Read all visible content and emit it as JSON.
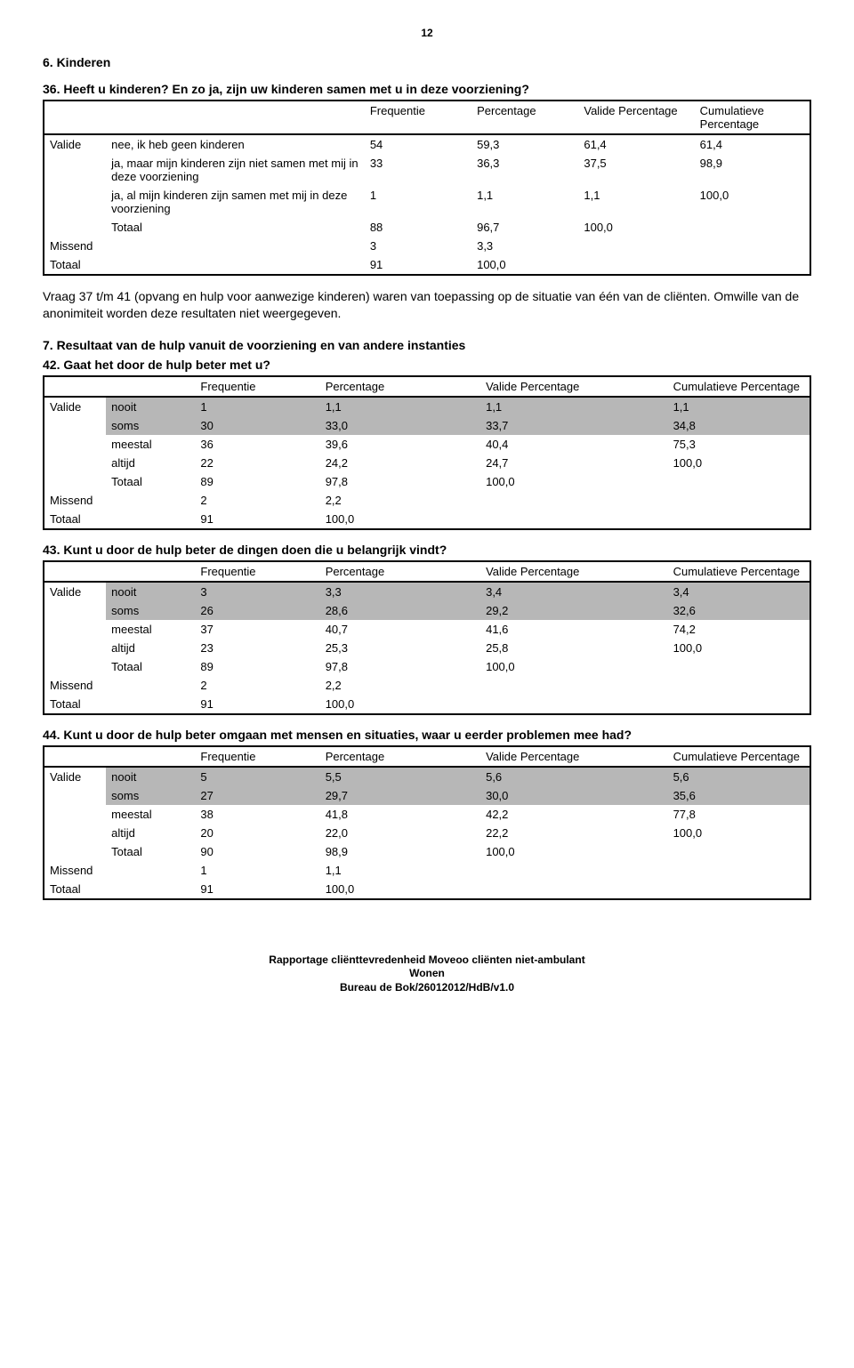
{
  "page_number": "12",
  "heading_section": "6. Kinderen",
  "q36": {
    "title": "36. Heeft u kinderen? En zo ja, zijn uw kinderen samen met u in deze voorziening?",
    "headers": [
      "Frequentie",
      "Percentage",
      "Valide Percentage",
      "Cumulatieve Percentage"
    ],
    "group_label": "Valide",
    "rows": [
      {
        "label": "nee, ik heb geen kinderen",
        "cells": [
          "54",
          "59,3",
          "61,4",
          "61,4"
        ]
      },
      {
        "label": "ja, maar mijn kinderen zijn niet samen met mij in deze voorziening",
        "cells": [
          "33",
          "36,3",
          "37,5",
          "98,9"
        ]
      },
      {
        "label": "ja, al mijn kinderen zijn samen met mij in deze voorziening",
        "cells": [
          "1",
          "1,1",
          "1,1",
          "100,0"
        ]
      },
      {
        "label": "Totaal",
        "cells": [
          "88",
          "96,7",
          "100,0",
          ""
        ]
      }
    ],
    "missend": {
      "label": "Missend",
      "cells": [
        "3",
        "3,3",
        "",
        ""
      ]
    },
    "totaal": {
      "label": "Totaal",
      "cells": [
        "91",
        "100,0",
        "",
        ""
      ]
    }
  },
  "note_paragraph": "Vraag 37 t/m 41 (opvang en hulp voor aanwezige kinderen) waren van toepassing op de situatie van één van de cliënten. Omwille van de anonimiteit worden deze resultaten niet weergegeven.",
  "heading_section2": "7. Resultaat van de hulp vanuit de voorziening en van andere instanties",
  "tableB_headers": [
    "Frequentie",
    "Percentage",
    "Valide Percentage",
    "Cumulatieve Percentage"
  ],
  "q42": {
    "title": "42. Gaat het door de hulp beter met u?",
    "rows": [
      {
        "label": "nooit",
        "shade": true,
        "cells": [
          "1",
          "1,1",
          "1,1",
          "1,1"
        ]
      },
      {
        "label": "soms",
        "shade": true,
        "cells": [
          "30",
          "33,0",
          "33,7",
          "34,8"
        ]
      },
      {
        "label": "meestal",
        "shade": false,
        "cells": [
          "36",
          "39,6",
          "40,4",
          "75,3"
        ]
      },
      {
        "label": "altijd",
        "shade": false,
        "cells": [
          "22",
          "24,2",
          "24,7",
          "100,0"
        ]
      },
      {
        "label": "Totaal",
        "shade": false,
        "cells": [
          "89",
          "97,8",
          "100,0",
          ""
        ]
      }
    ],
    "missend": {
      "label": "Missend",
      "cells": [
        "2",
        "2,2",
        "",
        ""
      ]
    },
    "totaal": {
      "label": "Totaal",
      "cells": [
        "91",
        "100,0",
        "",
        ""
      ]
    }
  },
  "q43": {
    "title": "43. Kunt u door de hulp beter de dingen doen die u belangrijk vindt?",
    "rows": [
      {
        "label": "nooit",
        "shade": true,
        "cells": [
          "3",
          "3,3",
          "3,4",
          "3,4"
        ]
      },
      {
        "label": "soms",
        "shade": true,
        "cells": [
          "26",
          "28,6",
          "29,2",
          "32,6"
        ]
      },
      {
        "label": "meestal",
        "shade": false,
        "cells": [
          "37",
          "40,7",
          "41,6",
          "74,2"
        ]
      },
      {
        "label": "altijd",
        "shade": false,
        "cells": [
          "23",
          "25,3",
          "25,8",
          "100,0"
        ]
      },
      {
        "label": "Totaal",
        "shade": false,
        "cells": [
          "89",
          "97,8",
          "100,0",
          ""
        ]
      }
    ],
    "missend": {
      "label": "Missend",
      "cells": [
        "2",
        "2,2",
        "",
        ""
      ]
    },
    "totaal": {
      "label": "Totaal",
      "cells": [
        "91",
        "100,0",
        "",
        ""
      ]
    }
  },
  "q44": {
    "title": "44. Kunt u door de hulp beter omgaan met mensen en situaties, waar u eerder problemen mee had?",
    "rows": [
      {
        "label": "nooit",
        "shade": true,
        "cells": [
          "5",
          "5,5",
          "5,6",
          "5,6"
        ]
      },
      {
        "label": "soms",
        "shade": true,
        "cells": [
          "27",
          "29,7",
          "30,0",
          "35,6"
        ]
      },
      {
        "label": "meestal",
        "shade": false,
        "cells": [
          "38",
          "41,8",
          "42,2",
          "77,8"
        ]
      },
      {
        "label": "altijd",
        "shade": false,
        "cells": [
          "20",
          "22,0",
          "22,2",
          "100,0"
        ]
      },
      {
        "label": "Totaal",
        "shade": false,
        "cells": [
          "90",
          "98,9",
          "100,0",
          ""
        ]
      }
    ],
    "missend": {
      "label": "Missend",
      "cells": [
        "1",
        "1,1",
        "",
        ""
      ]
    },
    "totaal": {
      "label": "Totaal",
      "cells": [
        "91",
        "100,0",
        "",
        ""
      ]
    }
  },
  "footer": {
    "line1": "Rapportage cliënttevredenheid Moveoo cliënten niet-ambulant",
    "line2": "Wonen",
    "line3": "Bureau de Bok/26012012/HdB/v1.0"
  },
  "group_label": "Valide"
}
